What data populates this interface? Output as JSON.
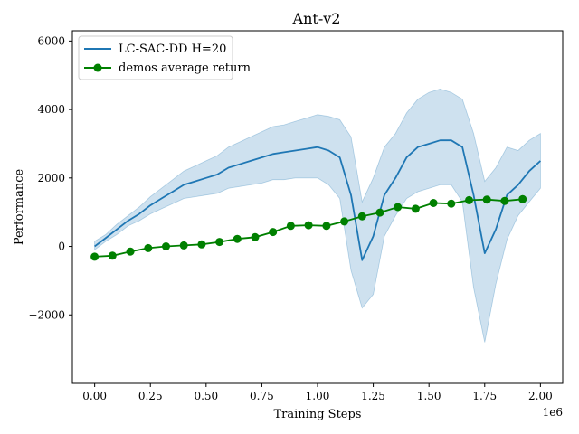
{
  "chart_data": {
    "type": "line",
    "title": "Ant-v2",
    "xlabel": "Training Steps",
    "ylabel": "Performance",
    "x_offset_label": "1e6",
    "xlim": [
      -0.1,
      2.1
    ],
    "ylim": [
      -4000,
      6300
    ],
    "x_ticks": [
      0.0,
      0.25,
      0.5,
      0.75,
      1.0,
      1.25,
      1.5,
      1.75,
      2.0
    ],
    "x_tick_labels": [
      "0.00",
      "0.25",
      "0.50",
      "0.75",
      "1.00",
      "1.25",
      "1.50",
      "1.75",
      "2.00"
    ],
    "y_ticks": [
      -2000,
      0,
      2000,
      4000,
      6000
    ],
    "y_tick_labels": [
      "−2000",
      "0",
      "2000",
      "4000",
      "6000"
    ],
    "grid": false,
    "legend_position": "top-left",
    "series": [
      {
        "name": "LC-SAC-DD H=20",
        "color": "#1f77b4",
        "style": "line-with-shaded-band",
        "x": [
          0.0,
          0.05,
          0.1,
          0.15,
          0.2,
          0.25,
          0.3,
          0.35,
          0.4,
          0.45,
          0.5,
          0.55,
          0.6,
          0.65,
          0.7,
          0.75,
          0.8,
          0.85,
          0.9,
          0.95,
          1.0,
          1.05,
          1.1,
          1.15,
          1.2,
          1.25,
          1.3,
          1.35,
          1.4,
          1.45,
          1.5,
          1.55,
          1.6,
          1.65,
          1.7,
          1.75,
          1.8,
          1.85,
          1.9,
          1.95,
          2.0
        ],
        "mean": [
          0,
          250,
          500,
          750,
          950,
          1200,
          1400,
          1600,
          1800,
          1900,
          2000,
          2100,
          2300,
          2400,
          2500,
          2600,
          2700,
          2750,
          2800,
          2850,
          2900,
          2800,
          2600,
          1500,
          -400,
          300,
          1500,
          2000,
          2600,
          2900,
          3000,
          3100,
          3100,
          2900,
          1500,
          -200,
          500,
          1500,
          1800,
          2200,
          2500
        ],
        "lower": [
          -100,
          150,
          350,
          600,
          750,
          950,
          1100,
          1250,
          1400,
          1450,
          1500,
          1550,
          1700,
          1750,
          1800,
          1850,
          1950,
          1950,
          2000,
          2000,
          2000,
          1800,
          1400,
          -700,
          -1800,
          -1400,
          300,
          900,
          1400,
          1600,
          1700,
          1800,
          1800,
          1300,
          -1200,
          -2800,
          -1100,
          200,
          900,
          1300,
          1700
        ],
        "upper": [
          150,
          350,
          650,
          900,
          1150,
          1450,
          1700,
          1950,
          2200,
          2350,
          2500,
          2650,
          2900,
          3050,
          3200,
          3350,
          3500,
          3550,
          3650,
          3750,
          3850,
          3800,
          3700,
          3200,
          1300,
          2000,
          2900,
          3300,
          3900,
          4300,
          4500,
          4600,
          4500,
          4300,
          3300,
          1900,
          2300,
          2900,
          2800,
          3100,
          3300
        ]
      },
      {
        "name": "demos average return",
        "color": "#008000",
        "style": "line-with-circle-markers",
        "x": [
          0.0,
          0.08,
          0.16,
          0.24,
          0.32,
          0.4,
          0.48,
          0.56,
          0.64,
          0.72,
          0.8,
          0.88,
          0.96,
          1.04,
          1.12,
          1.2,
          1.28,
          1.36,
          1.44,
          1.52,
          1.6,
          1.68,
          1.76,
          1.84,
          1.92
        ],
        "values": [
          -300,
          -270,
          -150,
          -50,
          0,
          30,
          60,
          130,
          220,
          270,
          420,
          600,
          620,
          600,
          730,
          880,
          990,
          1150,
          1100,
          1270,
          1250,
          1350,
          1370,
          1330,
          1380
        ]
      }
    ]
  }
}
